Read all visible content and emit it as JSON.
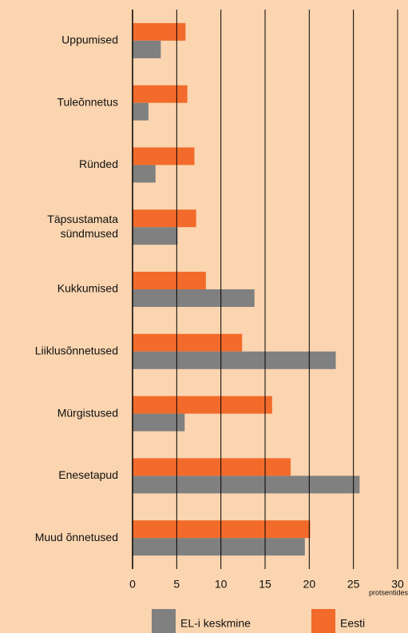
{
  "chart_data": {
    "type": "hbar",
    "categories": [
      "Uppumised",
      "Tuleõnnetus",
      "Ründed",
      "Täpsustamata\nsündmused",
      "Kukkumised",
      "Liiklusõnnetused",
      "Mürgistused",
      "Enesetapud",
      "Muud õnnetused"
    ],
    "series": [
      {
        "name": "Eesti",
        "color": "#f26b2b",
        "values": [
          6.0,
          6.2,
          7.0,
          7.2,
          8.3,
          12.4,
          15.8,
          17.9,
          20.1
        ]
      },
      {
        "name": "EL-i keskmine",
        "color": "#808080",
        "values": [
          3.2,
          1.8,
          2.6,
          5.1,
          13.8,
          23.0,
          5.9,
          25.7,
          19.5
        ]
      }
    ],
    "xlabel": "protsentides",
    "xlim": [
      0,
      30
    ],
    "xticks": [
      0,
      5,
      10,
      15,
      20,
      25,
      30
    ],
    "grid": true
  }
}
